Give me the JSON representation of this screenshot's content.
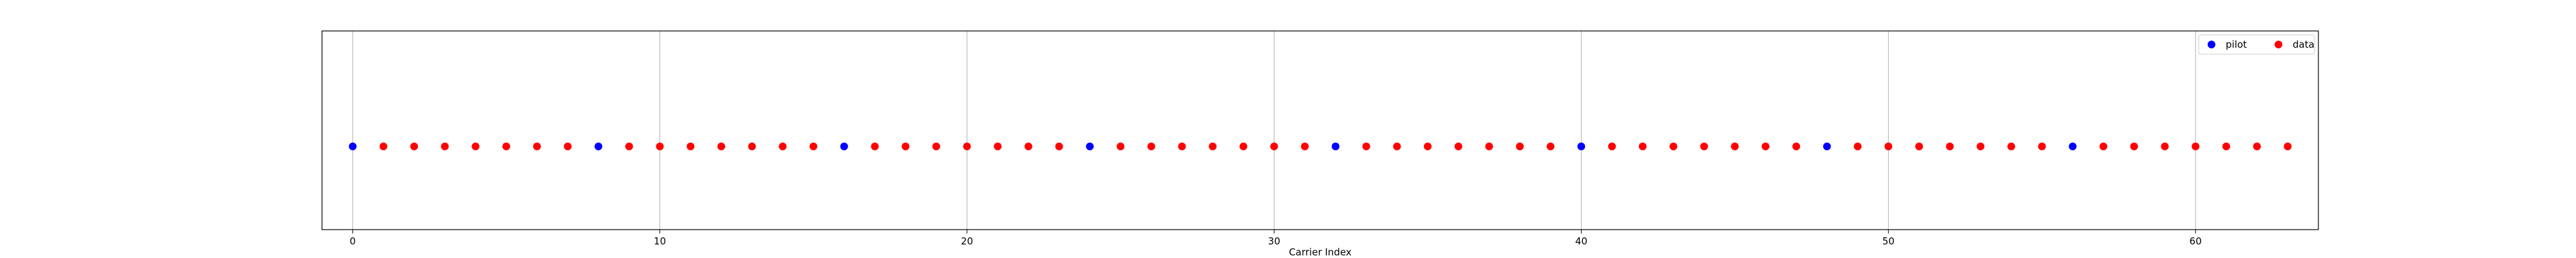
{
  "chart_data": {
    "type": "scatter",
    "title": "",
    "xlabel": "Carrier Index",
    "ylabel": "",
    "xlim": [
      -1,
      64
    ],
    "ylim": [
      -0.5,
      0.5
    ],
    "xticks": [
      0,
      10,
      20,
      30,
      40,
      50,
      60
    ],
    "yticks": [],
    "grid": "x-major",
    "legend_location": "upper right",
    "series": [
      {
        "name": "pilot",
        "color": "#0000ff",
        "x": [
          0,
          8,
          16,
          24,
          32,
          40,
          48,
          56
        ],
        "y": [
          0,
          0,
          0,
          0,
          0,
          0,
          0,
          0
        ]
      },
      {
        "name": "data",
        "color": "#ff0000",
        "x": [
          1,
          2,
          3,
          4,
          5,
          6,
          7,
          9,
          10,
          11,
          12,
          13,
          14,
          15,
          17,
          18,
          19,
          20,
          21,
          22,
          23,
          25,
          26,
          27,
          28,
          29,
          30,
          31,
          33,
          34,
          35,
          36,
          37,
          38,
          39,
          41,
          42,
          43,
          44,
          45,
          46,
          47,
          49,
          50,
          51,
          52,
          53,
          54,
          55,
          57,
          58,
          59,
          60,
          61,
          62,
          63
        ],
        "y": [
          0,
          0,
          0,
          0,
          0,
          0,
          0,
          0,
          0,
          0,
          0,
          0,
          0,
          0,
          0,
          0,
          0,
          0,
          0,
          0,
          0,
          0,
          0,
          0,
          0,
          0,
          0,
          0,
          0,
          0,
          0,
          0,
          0,
          0,
          0,
          0,
          0,
          0,
          0,
          0,
          0,
          0,
          0,
          0,
          0,
          0,
          0,
          0,
          0,
          0,
          0,
          0,
          0,
          0,
          0,
          0
        ]
      }
    ]
  }
}
